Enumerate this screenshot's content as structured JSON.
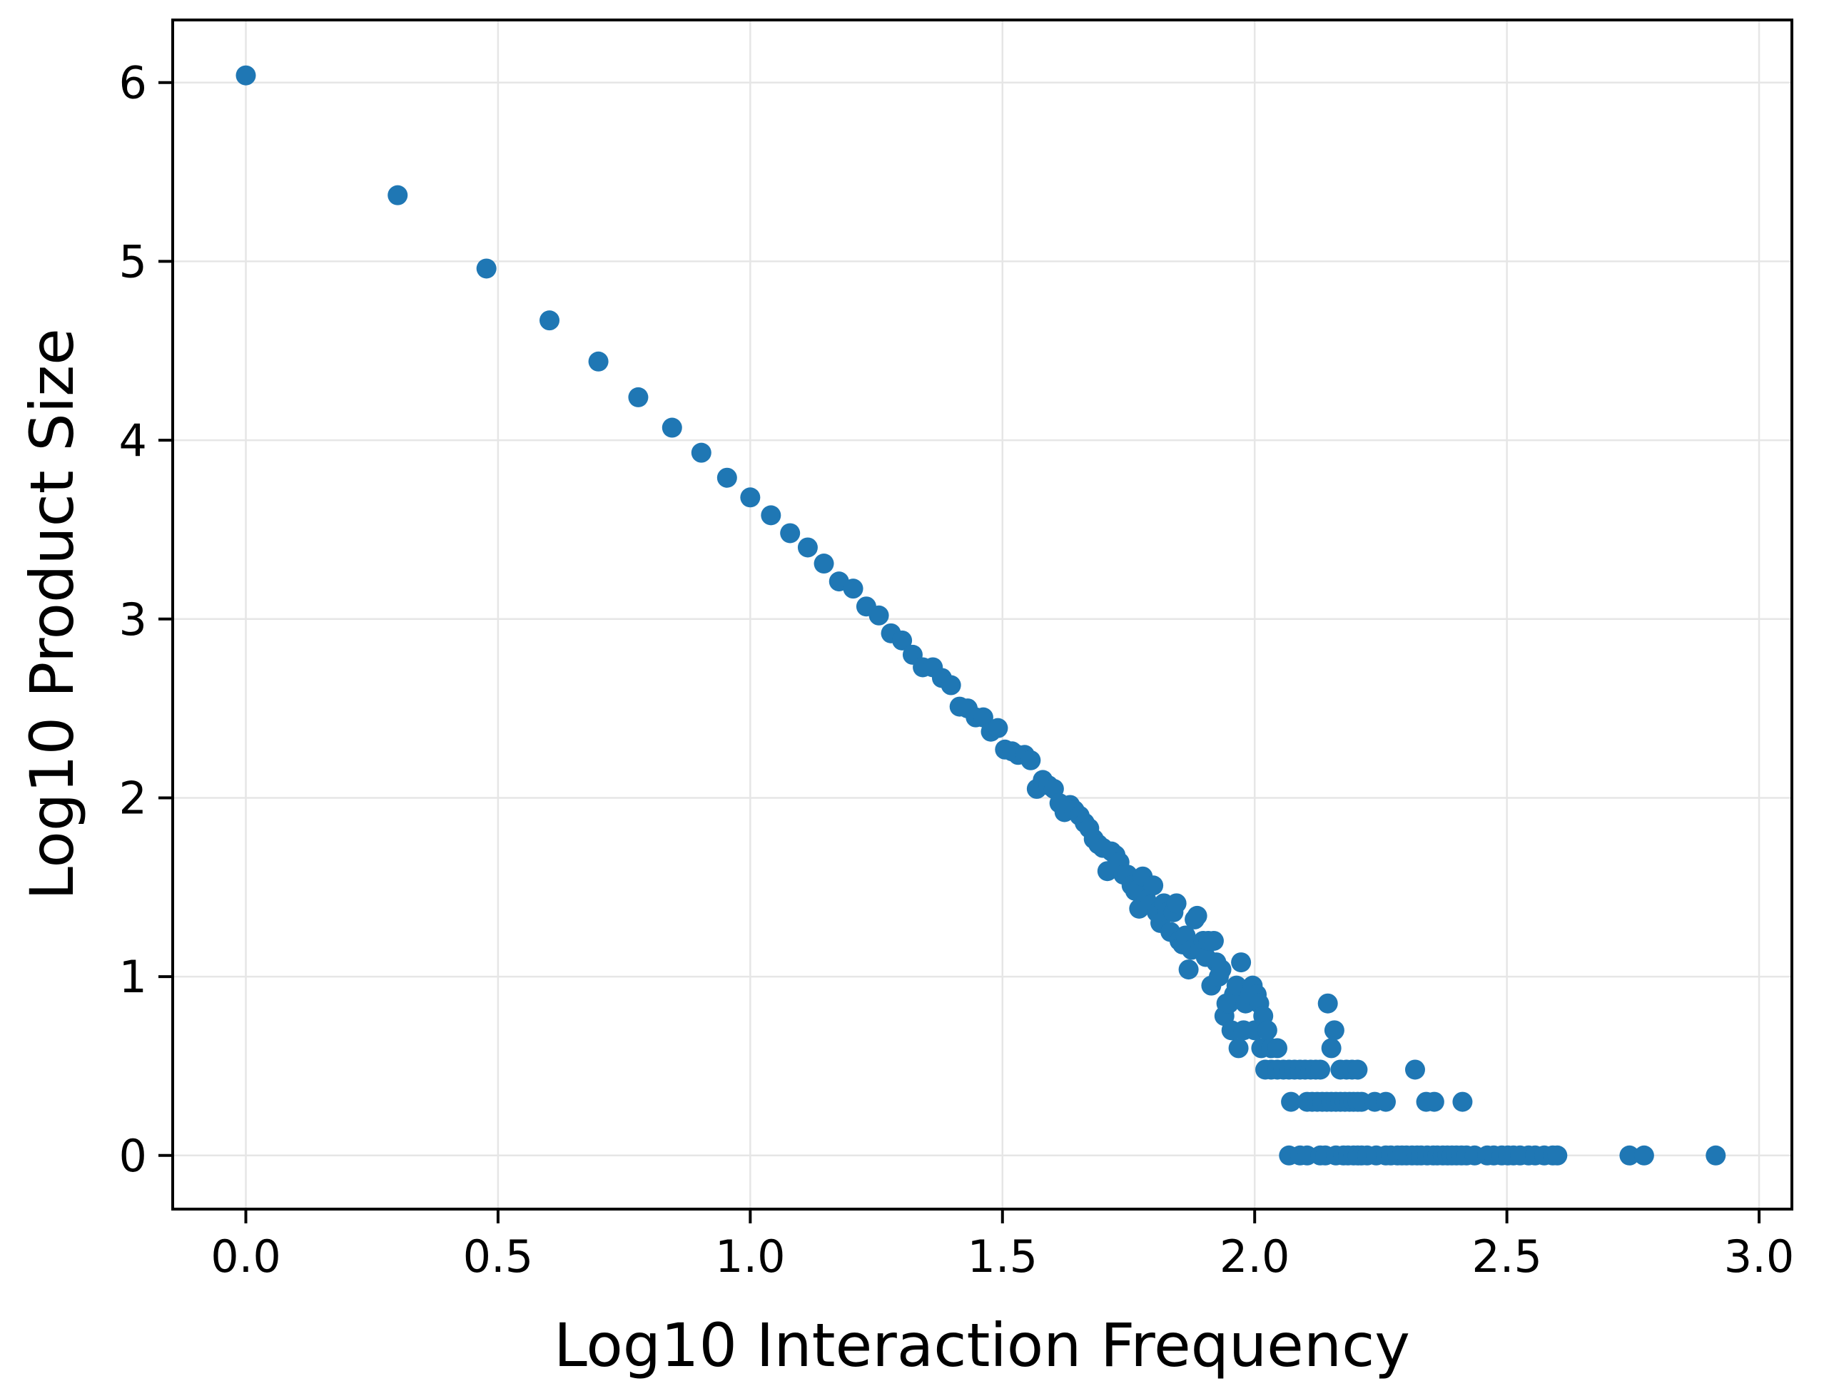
{
  "chart_data": {
    "type": "scatter",
    "title": "",
    "xlabel": "Log10 Interaction Frequency",
    "ylabel": "Log10 Product Size",
    "xlim": [
      -0.145,
      3.065
    ],
    "ylim": [
      -0.3,
      6.35
    ],
    "xticks": [
      "0.0",
      "0.5",
      "1.0",
      "1.5",
      "2.0",
      "2.5",
      "3.0"
    ],
    "yticks": [
      "0",
      "1",
      "2",
      "3",
      "4",
      "5",
      "6"
    ],
    "grid": true,
    "color": "#1f77b4",
    "points": [
      [
        0.0,
        6.04
      ],
      [
        0.301,
        5.37
      ],
      [
        0.477,
        4.96
      ],
      [
        0.602,
        4.67
      ],
      [
        0.699,
        4.44
      ],
      [
        0.778,
        4.24
      ],
      [
        0.845,
        4.07
      ],
      [
        0.903,
        3.93
      ],
      [
        0.954,
        3.79
      ],
      [
        1.0,
        3.68
      ],
      [
        1.041,
        3.58
      ],
      [
        1.079,
        3.48
      ],
      [
        1.114,
        3.4
      ],
      [
        1.146,
        3.31
      ],
      [
        1.176,
        3.21
      ],
      [
        1.204,
        3.17
      ],
      [
        1.23,
        3.07
      ],
      [
        1.255,
        3.02
      ],
      [
        1.279,
        2.92
      ],
      [
        1.301,
        2.88
      ],
      [
        1.322,
        2.8
      ],
      [
        1.342,
        2.73
      ],
      [
        1.362,
        2.73
      ],
      [
        1.38,
        2.67
      ],
      [
        1.398,
        2.63
      ],
      [
        1.415,
        2.51
      ],
      [
        1.431,
        2.5
      ],
      [
        1.447,
        2.45
      ],
      [
        1.462,
        2.45
      ],
      [
        1.477,
        2.37
      ],
      [
        1.491,
        2.39
      ],
      [
        1.505,
        2.27
      ],
      [
        1.519,
        2.26
      ],
      [
        1.531,
        2.24
      ],
      [
        1.544,
        2.24
      ],
      [
        1.556,
        2.21
      ],
      [
        1.568,
        2.05
      ],
      [
        1.58,
        2.1
      ],
      [
        1.591,
        2.07
      ],
      [
        1.602,
        2.05
      ],
      [
        1.613,
        1.97
      ],
      [
        1.623,
        1.92
      ],
      [
        1.634,
        1.96
      ],
      [
        1.643,
        1.93
      ],
      [
        1.653,
        1.9
      ],
      [
        1.663,
        1.86
      ],
      [
        1.672,
        1.83
      ],
      [
        1.681,
        1.77
      ],
      [
        1.69,
        1.74
      ],
      [
        1.699,
        1.72
      ],
      [
        1.708,
        1.59
      ],
      [
        1.716,
        1.7
      ],
      [
        1.724,
        1.68
      ],
      [
        1.732,
        1.64
      ],
      [
        1.74,
        1.57
      ],
      [
        1.748,
        1.57
      ],
      [
        1.756,
        1.51
      ],
      [
        1.763,
        1.48
      ],
      [
        1.771,
        1.38
      ],
      [
        1.778,
        1.56
      ],
      [
        1.785,
        1.43
      ],
      [
        1.792,
        1.4
      ],
      [
        1.799,
        1.51
      ],
      [
        1.806,
        1.36
      ],
      [
        1.813,
        1.3
      ],
      [
        1.82,
        1.41
      ],
      [
        1.826,
        1.36
      ],
      [
        1.833,
        1.25
      ],
      [
        1.839,
        1.36
      ],
      [
        1.845,
        1.41
      ],
      [
        1.851,
        1.2
      ],
      [
        1.857,
        1.18
      ],
      [
        1.863,
        1.23
      ],
      [
        1.869,
        1.04
      ],
      [
        1.875,
        1.15
      ],
      [
        1.881,
        1.32
      ],
      [
        1.886,
        1.34
      ],
      [
        1.892,
        1.15
      ],
      [
        1.898,
        1.2
      ],
      [
        1.903,
        1.11
      ],
      [
        1.908,
        1.2
      ],
      [
        1.914,
        0.95
      ],
      [
        1.919,
        1.2
      ],
      [
        1.924,
        1.08
      ],
      [
        1.929,
        1.0
      ],
      [
        1.934,
        1.04
      ],
      [
        1.94,
        0.78
      ],
      [
        1.944,
        0.85
      ],
      [
        1.949,
        0.85
      ],
      [
        1.954,
        0.7
      ],
      [
        1.959,
        0.9
      ],
      [
        1.964,
        0.95
      ],
      [
        1.968,
        0.6
      ],
      [
        1.973,
        1.08
      ],
      [
        1.978,
        0.7
      ],
      [
        1.982,
        0.85
      ],
      [
        1.991,
        0.9
      ],
      [
        1.996,
        0.95
      ],
      [
        2.0,
        0.7
      ],
      [
        2.004,
        0.9
      ],
      [
        2.009,
        0.85
      ],
      [
        2.013,
        0.6
      ],
      [
        2.017,
        0.78
      ],
      [
        2.025,
        0.7
      ],
      [
        2.033,
        0.6
      ],
      [
        2.045,
        0.6
      ],
      [
        2.145,
        0.85
      ],
      [
        2.152,
        0.6
      ],
      [
        2.158,
        0.7
      ],
      [
        2.021,
        0.48
      ],
      [
        2.033,
        0.48
      ],
      [
        2.045,
        0.48
      ],
      [
        2.057,
        0.48
      ],
      [
        2.068,
        0.48
      ],
      [
        2.079,
        0.48
      ],
      [
        2.09,
        0.48
      ],
      [
        2.1,
        0.48
      ],
      [
        2.111,
        0.48
      ],
      [
        2.121,
        0.48
      ],
      [
        2.13,
        0.48
      ],
      [
        2.17,
        0.48
      ],
      [
        2.182,
        0.48
      ],
      [
        2.193,
        0.48
      ],
      [
        2.204,
        0.48
      ],
      [
        2.318,
        0.48
      ],
      [
        2.072,
        0.3
      ],
      [
        2.104,
        0.3
      ],
      [
        2.114,
        0.3
      ],
      [
        2.124,
        0.3
      ],
      [
        2.134,
        0.3
      ],
      [
        2.143,
        0.3
      ],
      [
        2.152,
        0.3
      ],
      [
        2.161,
        0.3
      ],
      [
        2.17,
        0.3
      ],
      [
        2.179,
        0.3
      ],
      [
        2.188,
        0.3
      ],
      [
        2.196,
        0.3
      ],
      [
        2.204,
        0.3
      ],
      [
        2.212,
        0.3
      ],
      [
        2.238,
        0.3
      ],
      [
        2.26,
        0.3
      ],
      [
        2.34,
        0.3
      ],
      [
        2.356,
        0.3
      ],
      [
        2.412,
        0.3
      ],
      [
        2.068,
        0.0
      ],
      [
        2.09,
        0.0
      ],
      [
        2.104,
        0.0
      ],
      [
        2.13,
        0.0
      ],
      [
        2.14,
        0.0
      ],
      [
        2.161,
        0.0
      ],
      [
        2.176,
        0.0
      ],
      [
        2.185,
        0.0
      ],
      [
        2.196,
        0.0
      ],
      [
        2.204,
        0.0
      ],
      [
        2.212,
        0.0
      ],
      [
        2.223,
        0.0
      ],
      [
        2.241,
        0.0
      ],
      [
        2.26,
        0.0
      ],
      [
        2.27,
        0.0
      ],
      [
        2.283,
        0.0
      ],
      [
        2.292,
        0.0
      ],
      [
        2.301,
        0.0
      ],
      [
        2.312,
        0.0
      ],
      [
        2.322,
        0.0
      ],
      [
        2.33,
        0.0
      ],
      [
        2.342,
        0.0
      ],
      [
        2.354,
        0.0
      ],
      [
        2.362,
        0.0
      ],
      [
        2.373,
        0.0
      ],
      [
        2.382,
        0.0
      ],
      [
        2.391,
        0.0
      ],
      [
        2.4,
        0.0
      ],
      [
        2.41,
        0.0
      ],
      [
        2.42,
        0.0
      ],
      [
        2.436,
        0.0
      ],
      [
        2.461,
        0.0
      ],
      [
        2.474,
        0.0
      ],
      [
        2.49,
        0.0
      ],
      [
        2.502,
        0.0
      ],
      [
        2.513,
        0.0
      ],
      [
        2.526,
        0.0
      ],
      [
        2.543,
        0.0
      ],
      [
        2.556,
        0.0
      ],
      [
        2.574,
        0.0
      ],
      [
        2.591,
        0.0
      ],
      [
        2.6,
        0.0
      ],
      [
        2.743,
        0.0
      ],
      [
        2.772,
        0.0
      ],
      [
        2.914,
        0.0
      ]
    ]
  }
}
